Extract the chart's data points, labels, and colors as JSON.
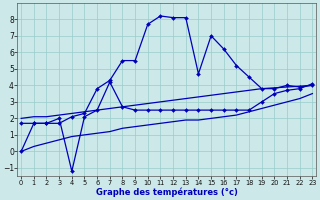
{
  "background_color": "#cce8e8",
  "grid_color": "#99cccc",
  "line_color": "#0000bb",
  "xlabel": "Graphe des températures (°c)",
  "xlim": [
    0,
    23
  ],
  "ylim": [
    -1.5,
    9.0
  ],
  "xticks": [
    0,
    1,
    2,
    3,
    4,
    5,
    6,
    7,
    8,
    9,
    10,
    11,
    12,
    13,
    14,
    15,
    16,
    17,
    18,
    19,
    20,
    21,
    22,
    23
  ],
  "yticks": [
    -1,
    0,
    1,
    2,
    3,
    4,
    5,
    6,
    7,
    8
  ],
  "curve1_x": [
    0,
    1,
    2,
    3,
    4,
    5,
    6,
    7,
    8,
    9,
    10,
    11,
    12,
    13,
    14,
    15,
    16,
    17,
    18,
    19,
    20,
    21,
    22,
    23
  ],
  "curve1_y": [
    0,
    1.7,
    1.7,
    1.7,
    2.1,
    2.3,
    3.8,
    4.3,
    5.5,
    5.5,
    7.7,
    8.2,
    8.1,
    8.1,
    4.7,
    7.0,
    6.2,
    5.2,
    4.5,
    3.8,
    3.8,
    4.0,
    3.9,
    4.0
  ],
  "curve2_x": [
    0,
    1,
    2,
    3,
    4,
    5,
    6,
    7,
    8,
    9,
    10,
    11,
    12,
    13,
    14,
    15,
    16,
    17,
    18,
    19,
    20,
    21,
    22,
    23
  ],
  "curve2_y": [
    2.0,
    2.1,
    2.1,
    2.2,
    2.3,
    2.4,
    2.5,
    2.6,
    2.7,
    2.8,
    2.9,
    3.0,
    3.1,
    3.2,
    3.3,
    3.4,
    3.5,
    3.6,
    3.7,
    3.8,
    3.85,
    3.9,
    3.95,
    4.0
  ],
  "curve3_x": [
    0,
    1,
    2,
    3,
    4,
    5,
    6,
    7,
    8,
    9,
    10,
    11,
    12,
    13,
    14,
    15,
    16,
    17,
    18,
    19,
    20,
    21,
    22,
    23
  ],
  "curve3_y": [
    1.7,
    1.7,
    1.7,
    2.0,
    -1.2,
    2.1,
    2.5,
    4.2,
    2.7,
    2.5,
    2.5,
    2.5,
    2.5,
    2.5,
    2.5,
    2.5,
    2.5,
    2.5,
    2.5,
    3.0,
    3.5,
    3.7,
    3.8,
    4.1
  ],
  "curve4_x": [
    0,
    1,
    2,
    3,
    4,
    5,
    6,
    7,
    8,
    9,
    10,
    11,
    12,
    13,
    14,
    15,
    16,
    17,
    18,
    19,
    20,
    21,
    22,
    23
  ],
  "curve4_y": [
    0.0,
    0.3,
    0.5,
    0.7,
    0.9,
    1.0,
    1.1,
    1.2,
    1.4,
    1.5,
    1.6,
    1.7,
    1.8,
    1.9,
    1.9,
    2.0,
    2.1,
    2.2,
    2.4,
    2.6,
    2.8,
    3.0,
    3.2,
    3.5
  ]
}
